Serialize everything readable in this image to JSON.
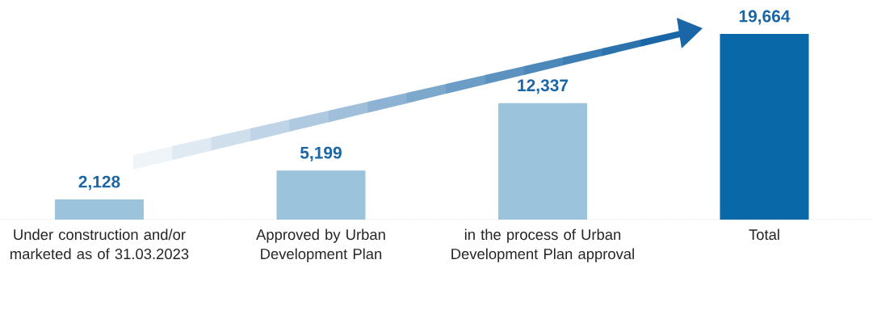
{
  "chart_data": {
    "type": "bar",
    "categories": [
      "Under construction and/or marketed as of 31.03.2023",
      "Approved by Urban Development Plan",
      "in the process of Urban Development Plan approval",
      "Total"
    ],
    "values": [
      2128,
      5199,
      12337,
      19664
    ],
    "colors": [
      "#9cc3dc",
      "#9cc3dc",
      "#9cc3dc",
      "#0868a8"
    ],
    "value_labels": [
      "2,128",
      "5,199",
      "12,337",
      "19,664"
    ]
  }
}
